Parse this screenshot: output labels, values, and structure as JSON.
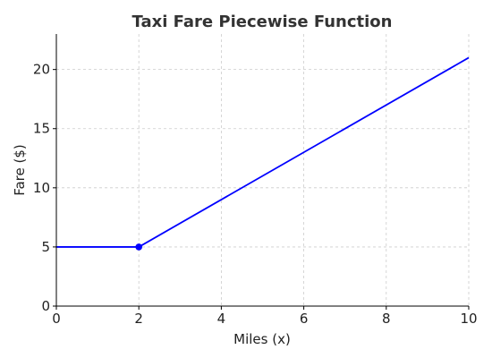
{
  "chart_data": {
    "type": "line",
    "title": "Taxi Fare Piecewise Function",
    "xlabel": "Miles (x)",
    "ylabel": "Fare ($)",
    "xlim": [
      0,
      10
    ],
    "ylim": [
      0,
      23
    ],
    "x_ticks": [
      0,
      2,
      4,
      6,
      8,
      10
    ],
    "y_ticks": [
      0,
      5,
      10,
      15,
      20
    ],
    "grid": true,
    "series": [
      {
        "color": "#0000ff",
        "x": [
          0,
          2,
          10
        ],
        "y": [
          5,
          5,
          21
        ]
      }
    ],
    "markers": [
      {
        "x": 2,
        "y": 5,
        "color": "#0000ff"
      }
    ]
  }
}
